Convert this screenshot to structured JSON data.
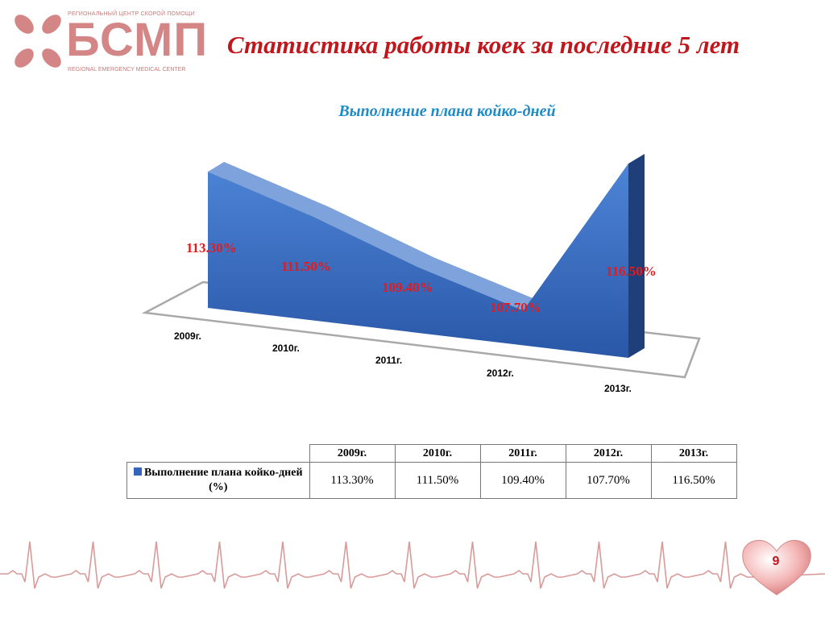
{
  "logo": {
    "top_text": "РЕГИОНАЛЬНЫЙ ЦЕНТР СКОРОЙ ПОМОЩИ",
    "main_text": "БСМП",
    "bottom_text": "REGIONAL EMERGENCY MEDICAL CENTER",
    "icon": "cross-petals-icon",
    "color": "#d48585"
  },
  "title": "Статистика работы коек за последние 5 лет",
  "chart_data": {
    "type": "area",
    "title": "Выполнение плана койко-дней",
    "categories": [
      "2009г.",
      "2010г.",
      "2011г.",
      "2012г.",
      "2013г."
    ],
    "series": [
      {
        "name": "Выполнение плана койко-дней (%)",
        "values": [
          113.3,
          111.5,
          109.4,
          107.7,
          116.5
        ],
        "labels": [
          "113.30%",
          "111.50%",
          "109.40%",
          "107.70%",
          "116.50%"
        ],
        "color": "#3465b8"
      }
    ],
    "three_d": true,
    "label_color": "#e41a1c"
  },
  "table": {
    "row_label": "Выполнение плана койко-дней (%)"
  },
  "page_number": "9",
  "colors": {
    "title": "#c0161c",
    "subtitle": "#1f8bc7",
    "ecg": "#d99a9a"
  }
}
